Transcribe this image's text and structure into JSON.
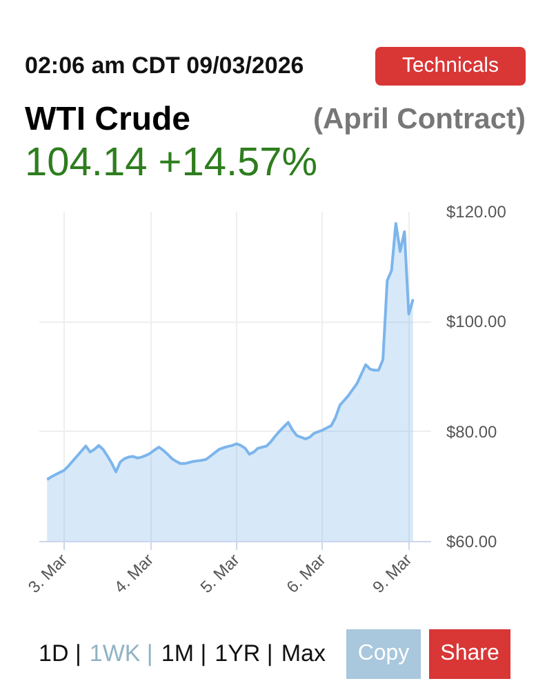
{
  "chart_data": {
    "type": "area",
    "title": "WTI Crude",
    "subtitle": "(April Contract)",
    "annotations": [
      "02:06 am CDT 09/03/2026",
      "Technicals",
      "104.14 +14.57%",
      "1D |",
      "1WK |",
      "1M |",
      "1YR |",
      "Max",
      "Copy",
      "Share"
    ],
    "categories": [
      null,
      null,
      null,
      null,
      "3. Mar",
      null,
      null,
      null,
      null,
      null,
      null,
      null,
      null,
      null,
      null,
      null,
      null,
      null,
      null,
      null,
      null,
      null,
      null,
      null,
      "4. Mar",
      null,
      null,
      null,
      null,
      null,
      null,
      null,
      null,
      null,
      null,
      null,
      null,
      null,
      null,
      null,
      null,
      null,
      null,
      null,
      "5. Mar",
      null,
      null,
      null,
      null,
      null,
      null,
      null,
      null,
      null,
      null,
      null,
      null,
      null,
      null,
      null,
      null,
      null,
      null,
      null,
      "6. Mar",
      null,
      null,
      null,
      null,
      null,
      null,
      null,
      null,
      null,
      null,
      null,
      null,
      null,
      null,
      null,
      null,
      null,
      null,
      null,
      "9. Mar",
      null
    ],
    "series": [
      {
        "color": "#7cb5ec",
        "values": [
          71.3,
          71.8,
          72.2,
          72.6,
          73.0,
          73.8,
          74.7,
          75.6,
          76.5,
          77.4,
          76.3,
          76.8,
          77.5,
          76.8,
          75.6,
          74.3,
          72.7,
          74.5,
          75.1,
          75.4,
          75.5,
          75.2,
          75.4,
          75.7,
          76.1,
          76.7,
          77.2,
          76.6,
          75.9,
          75.1,
          74.6,
          74.2,
          74.2,
          74.4,
          74.6,
          74.7,
          74.8,
          75.0,
          75.6,
          76.2,
          76.8,
          77.1,
          77.3,
          77.5,
          77.8,
          77.5,
          77.0,
          75.9,
          76.3,
          77.0,
          77.2,
          77.4,
          78.2,
          79.2,
          80.1,
          80.9,
          81.7,
          80.3,
          79.3,
          79.0,
          78.7,
          79.0,
          79.7,
          80.0,
          80.3,
          80.7,
          81.1,
          82.6,
          84.8,
          85.7,
          86.6,
          87.7,
          88.8,
          90.5,
          92.2,
          91.4,
          91.2,
          91.2,
          93.1,
          107.5,
          109.3,
          117.9,
          112.8,
          116.4,
          101.4,
          104.1
        ]
      }
    ],
    "ylim": [
      60,
      120
    ],
    "yticks": [
      {
        "value": 60,
        "label": "$60.00"
      },
      {
        "value": 80,
        "label": "$80.00"
      },
      {
        "value": 100,
        "label": "$100.00"
      },
      {
        "value": 120,
        "label": "$120.00"
      }
    ],
    "grid": true
  }
}
